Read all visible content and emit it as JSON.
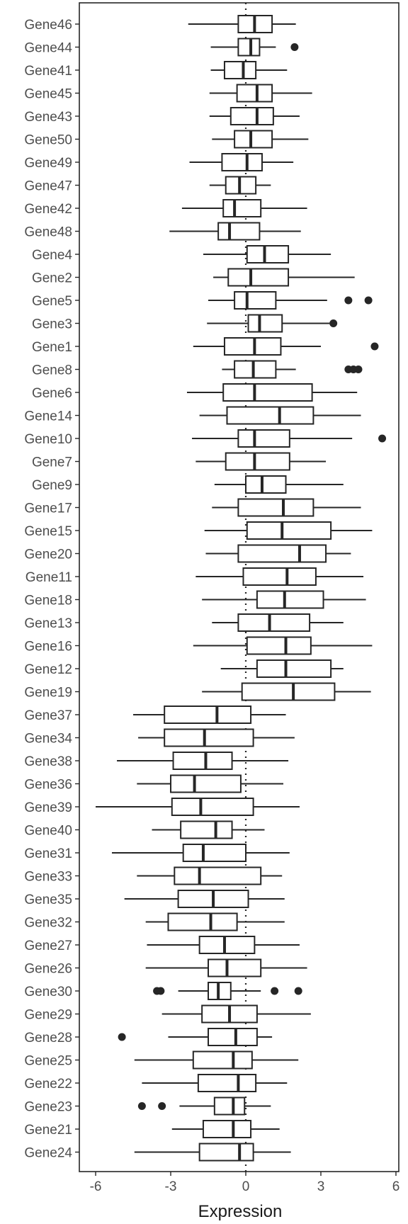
{
  "chart_data": {
    "type": "boxplot",
    "orientation": "horizontal",
    "xlabel": "Expression",
    "ylabel": "",
    "xlim": [
      -6.5,
      6
    ],
    "xticks": [
      -6,
      -3,
      0,
      3,
      6
    ],
    "xtick_labels": [
      "-6",
      "-3",
      "0",
      "3",
      "6"
    ],
    "reference_line": {
      "x": 0,
      "style": "dotted"
    },
    "grid": false,
    "legend": "none",
    "colors": {
      "box_stroke": "#262626",
      "box_fill": "#ffffff",
      "outlier": "#262626",
      "text": "#4d4d4d"
    },
    "genes": [
      {
        "name": "Gene46",
        "wmin": -2.3,
        "q1": -0.3,
        "median": 0.35,
        "q3": 1.05,
        "wmax": 2.0,
        "outliers": []
      },
      {
        "name": "Gene44",
        "wmin": -1.4,
        "q1": -0.3,
        "median": 0.2,
        "q3": 0.55,
        "wmax": 1.2,
        "outliers": [
          1.95
        ]
      },
      {
        "name": "Gene41",
        "wmin": -1.4,
        "q1": -0.85,
        "median": -0.1,
        "q3": 0.4,
        "wmax": 1.65,
        "outliers": []
      },
      {
        "name": "Gene45",
        "wmin": -1.45,
        "q1": -0.35,
        "median": 0.45,
        "q3": 1.05,
        "wmax": 2.65,
        "outliers": []
      },
      {
        "name": "Gene43",
        "wmin": -1.45,
        "q1": -0.6,
        "median": 0.45,
        "q3": 1.1,
        "wmax": 2.15,
        "outliers": []
      },
      {
        "name": "Gene50",
        "wmin": -1.35,
        "q1": -0.45,
        "median": 0.2,
        "q3": 1.05,
        "wmax": 2.5,
        "outliers": []
      },
      {
        "name": "Gene49",
        "wmin": -2.25,
        "q1": -0.95,
        "median": 0.05,
        "q3": 0.65,
        "wmax": 1.9,
        "outliers": []
      },
      {
        "name": "Gene47",
        "wmin": -1.45,
        "q1": -0.8,
        "median": -0.25,
        "q3": 0.4,
        "wmax": 1.0,
        "outliers": []
      },
      {
        "name": "Gene42",
        "wmin": -2.55,
        "q1": -0.9,
        "median": -0.45,
        "q3": 0.6,
        "wmax": 2.45,
        "outliers": []
      },
      {
        "name": "Gene48",
        "wmin": -3.05,
        "q1": -1.1,
        "median": -0.65,
        "q3": 0.55,
        "wmax": 2.2,
        "outliers": []
      },
      {
        "name": "Gene4",
        "wmin": -1.7,
        "q1": 0.05,
        "median": 0.75,
        "q3": 1.7,
        "wmax": 3.4,
        "outliers": []
      },
      {
        "name": "Gene2",
        "wmin": -1.3,
        "q1": -0.7,
        "median": 0.2,
        "q3": 1.7,
        "wmax": 4.35,
        "outliers": []
      },
      {
        "name": "Gene5",
        "wmin": -1.5,
        "q1": -0.45,
        "median": 0.05,
        "q3": 1.2,
        "wmax": 3.25,
        "outliers": [
          4.1,
          4.9
        ]
      },
      {
        "name": "Gene3",
        "wmin": -1.55,
        "q1": 0.1,
        "median": 0.55,
        "q3": 1.45,
        "wmax": 3.35,
        "outliers": [
          3.5
        ]
      },
      {
        "name": "Gene1",
        "wmin": -2.1,
        "q1": -0.85,
        "median": 0.35,
        "q3": 1.4,
        "wmax": 3.0,
        "outliers": [
          5.15
        ]
      },
      {
        "name": "Gene8",
        "wmin": -0.95,
        "q1": -0.45,
        "median": 0.3,
        "q3": 1.2,
        "wmax": 2.0,
        "outliers": [
          4.1,
          4.3,
          4.5
        ]
      },
      {
        "name": "Gene6",
        "wmin": -2.35,
        "q1": -0.9,
        "median": 0.35,
        "q3": 2.65,
        "wmax": 4.45,
        "outliers": []
      },
      {
        "name": "Gene14",
        "wmin": -1.85,
        "q1": -0.75,
        "median": 1.35,
        "q3": 2.7,
        "wmax": 4.6,
        "outliers": []
      },
      {
        "name": "Gene10",
        "wmin": -2.15,
        "q1": -0.3,
        "median": 0.35,
        "q3": 1.75,
        "wmax": 4.25,
        "outliers": [
          5.45
        ]
      },
      {
        "name": "Gene7",
        "wmin": -2.0,
        "q1": -0.8,
        "median": 0.35,
        "q3": 1.75,
        "wmax": 3.2,
        "outliers": []
      },
      {
        "name": "Gene9",
        "wmin": -1.25,
        "q1": 0.0,
        "median": 0.65,
        "q3": 1.6,
        "wmax": 3.9,
        "outliers": []
      },
      {
        "name": "Gene17",
        "wmin": -1.35,
        "q1": -0.3,
        "median": 1.5,
        "q3": 2.7,
        "wmax": 4.6,
        "outliers": []
      },
      {
        "name": "Gene15",
        "wmin": -1.65,
        "q1": 0.05,
        "median": 1.45,
        "q3": 3.4,
        "wmax": 5.05,
        "outliers": []
      },
      {
        "name": "Gene20",
        "wmin": -1.6,
        "q1": -0.3,
        "median": 2.15,
        "q3": 3.2,
        "wmax": 4.2,
        "outliers": []
      },
      {
        "name": "Gene11",
        "wmin": -2.0,
        "q1": -0.1,
        "median": 1.65,
        "q3": 2.8,
        "wmax": 4.7,
        "outliers": []
      },
      {
        "name": "Gene18",
        "wmin": -1.75,
        "q1": 0.45,
        "median": 1.55,
        "q3": 3.1,
        "wmax": 4.8,
        "outliers": []
      },
      {
        "name": "Gene13",
        "wmin": -1.35,
        "q1": -0.3,
        "median": 0.95,
        "q3": 2.55,
        "wmax": 3.9,
        "outliers": []
      },
      {
        "name": "Gene16",
        "wmin": -2.1,
        "q1": 0.05,
        "median": 1.6,
        "q3": 2.6,
        "wmax": 5.05,
        "outliers": []
      },
      {
        "name": "Gene12",
        "wmin": -1.0,
        "q1": 0.45,
        "median": 1.6,
        "q3": 3.4,
        "wmax": 3.9,
        "outliers": []
      },
      {
        "name": "Gene19",
        "wmin": -1.75,
        "q1": -0.15,
        "median": 1.9,
        "q3": 3.55,
        "wmax": 5.0,
        "outliers": []
      },
      {
        "name": "Gene37",
        "wmin": -4.5,
        "q1": -3.25,
        "median": -1.15,
        "q3": 0.2,
        "wmax": 1.6,
        "outliers": []
      },
      {
        "name": "Gene34",
        "wmin": -4.3,
        "q1": -3.25,
        "median": -1.65,
        "q3": 0.3,
        "wmax": 1.95,
        "outliers": []
      },
      {
        "name": "Gene38",
        "wmin": -5.15,
        "q1": -2.9,
        "median": -1.6,
        "q3": -0.55,
        "wmax": 1.7,
        "outliers": []
      },
      {
        "name": "Gene36",
        "wmin": -4.35,
        "q1": -3.0,
        "median": -2.05,
        "q3": -0.2,
        "wmax": 1.5,
        "outliers": []
      },
      {
        "name": "Gene39",
        "wmin": -6.0,
        "q1": -2.95,
        "median": -1.8,
        "q3": 0.3,
        "wmax": 2.15,
        "outliers": []
      },
      {
        "name": "Gene40",
        "wmin": -3.75,
        "q1": -2.6,
        "median": -1.2,
        "q3": -0.55,
        "wmax": 0.75,
        "outliers": []
      },
      {
        "name": "Gene31",
        "wmin": -5.35,
        "q1": -2.5,
        "median": -1.7,
        "q3": 0.0,
        "wmax": 1.75,
        "outliers": []
      },
      {
        "name": "Gene33",
        "wmin": -4.35,
        "q1": -2.85,
        "median": -1.85,
        "q3": 0.6,
        "wmax": 1.45,
        "outliers": []
      },
      {
        "name": "Gene35",
        "wmin": -4.85,
        "q1": -2.7,
        "median": -1.3,
        "q3": 0.1,
        "wmax": 1.55,
        "outliers": []
      },
      {
        "name": "Gene32",
        "wmin": -4.0,
        "q1": -3.1,
        "median": -1.4,
        "q3": -0.35,
        "wmax": 1.55,
        "outliers": []
      },
      {
        "name": "Gene27",
        "wmin": -3.95,
        "q1": -1.85,
        "median": -0.85,
        "q3": 0.35,
        "wmax": 2.15,
        "outliers": []
      },
      {
        "name": "Gene26",
        "wmin": -4.0,
        "q1": -1.5,
        "median": -0.75,
        "q3": 0.6,
        "wmax": 2.45,
        "outliers": []
      },
      {
        "name": "Gene30",
        "wmin": -2.7,
        "q1": -1.5,
        "median": -1.1,
        "q3": -0.6,
        "wmax": 0.6,
        "outliers": [
          -3.55,
          -3.4,
          1.15,
          2.1
        ]
      },
      {
        "name": "Gene29",
        "wmin": -3.35,
        "q1": -1.75,
        "median": -0.65,
        "q3": 0.45,
        "wmax": 2.6,
        "outliers": []
      },
      {
        "name": "Gene28",
        "wmin": -3.1,
        "q1": -1.5,
        "median": -0.4,
        "q3": 0.45,
        "wmax": 1.05,
        "outliers": [
          -4.95
        ]
      },
      {
        "name": "Gene25",
        "wmin": -4.45,
        "q1": -2.1,
        "median": -0.5,
        "q3": 0.25,
        "wmax": 2.1,
        "outliers": []
      },
      {
        "name": "Gene22",
        "wmin": -4.15,
        "q1": -1.9,
        "median": -0.3,
        "q3": 0.4,
        "wmax": 1.65,
        "outliers": []
      },
      {
        "name": "Gene23",
        "wmin": -2.65,
        "q1": -1.25,
        "median": -0.5,
        "q3": -0.05,
        "wmax": 1.0,
        "outliers": [
          -4.15,
          -3.35
        ]
      },
      {
        "name": "Gene21",
        "wmin": -2.95,
        "q1": -1.7,
        "median": -0.5,
        "q3": 0.2,
        "wmax": 1.35,
        "outliers": []
      },
      {
        "name": "Gene24",
        "wmin": -4.45,
        "q1": -1.85,
        "median": -0.25,
        "q3": 0.3,
        "wmax": 1.8,
        "outliers": []
      }
    ]
  }
}
